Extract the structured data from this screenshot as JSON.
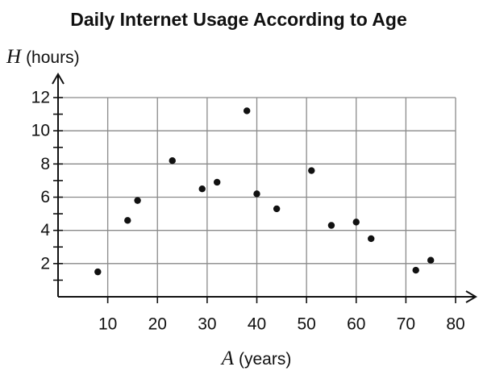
{
  "chart_data": {
    "type": "scatter",
    "title": "Daily Internet Usage According to Age",
    "xlabel": {
      "variable": "A",
      "unit": "(years)"
    },
    "ylabel": {
      "variable": "H",
      "unit": "(hours)"
    },
    "x": [
      8,
      14,
      16,
      23,
      29,
      32,
      38,
      40,
      44,
      51,
      55,
      60,
      63,
      72,
      75
    ],
    "values": [
      1.5,
      4.6,
      5.8,
      8.2,
      6.5,
      6.9,
      11.2,
      6.2,
      5.3,
      7.6,
      4.3,
      4.5,
      3.5,
      1.6,
      2.2
    ],
    "color": "#111111",
    "xlim": [
      0,
      80
    ],
    "ylim": [
      0,
      12
    ],
    "xticks": [
      10,
      20,
      30,
      40,
      50,
      60,
      70,
      80
    ],
    "yticks": [
      2,
      4,
      6,
      8,
      10,
      12
    ],
    "yminor_ticks": [
      1,
      3,
      5,
      7,
      9,
      11
    ],
    "grid": true
  }
}
